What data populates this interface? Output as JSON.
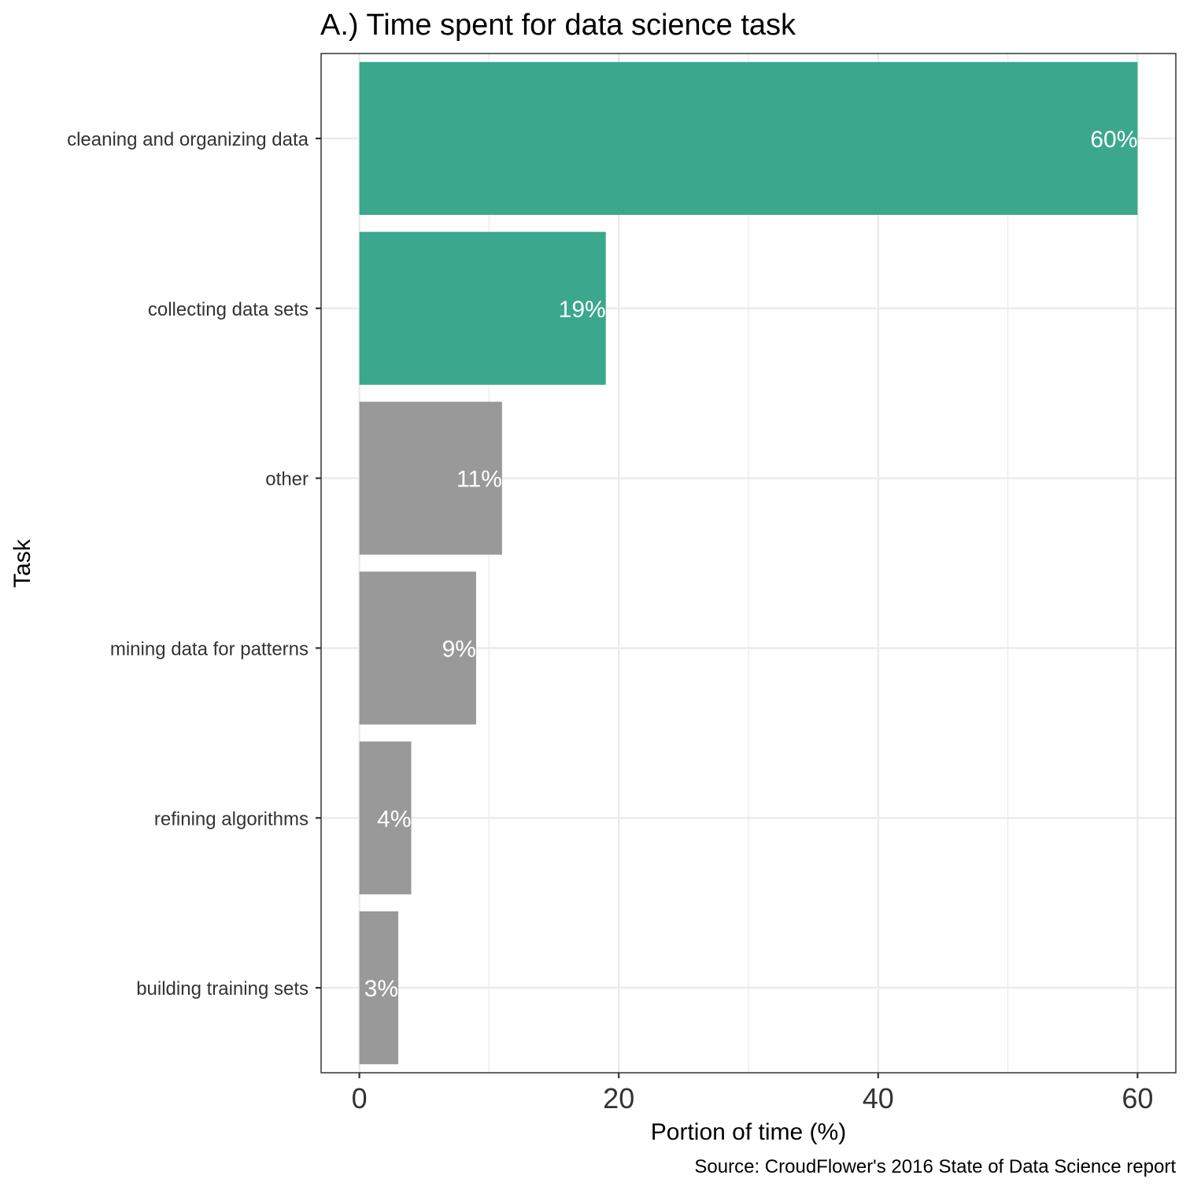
{
  "chart_data": {
    "type": "bar",
    "orientation": "horizontal",
    "title": "A.) Time spent for data science task",
    "xlabel": "Portion of time (%)",
    "ylabel": "Task",
    "caption": "Source: CroudFlower's 2016 State of Data Science report",
    "categories": [
      "cleaning and organizing data",
      "collecting data sets",
      "other",
      "mining data for patterns",
      "refining algorithms",
      "building training sets"
    ],
    "values": [
      60,
      19,
      11,
      9,
      4,
      3
    ],
    "value_labels": [
      "60%",
      "19%",
      "11%",
      "9%",
      "4%",
      "3%"
    ],
    "highlighted": [
      true,
      true,
      false,
      false,
      false,
      false
    ],
    "colors": {
      "highlight": "#3ba78c",
      "other": "#999999",
      "grid": "#ebebeb",
      "panel_border": "#333333"
    },
    "xlim": [
      -2.95,
      62.95
    ],
    "x_ticks": [
      0,
      20,
      40,
      60
    ],
    "x_tick_labels": [
      "0",
      "20",
      "40",
      "60"
    ],
    "grid": true,
    "legend": "none"
  }
}
